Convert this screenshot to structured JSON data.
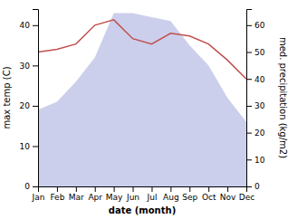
{
  "chart_data": {
    "type": "line",
    "categories": [
      "Jan",
      "Feb",
      "Mar",
      "Apr",
      "May",
      "Jun",
      "Jul",
      "Aug",
      "Sep",
      "Oct",
      "Nov",
      "Dec"
    ],
    "series": [
      {
        "type": "area",
        "color": "#c5cae9",
        "values": [
          19,
          21,
          26,
          32,
          43,
          43,
          42,
          41,
          35,
          30,
          22,
          16
        ]
      },
      {
        "type": "line",
        "color": "#c0504d",
        "axis": "y2",
        "values": [
          50,
          51,
          53,
          60,
          62,
          55,
          53,
          57,
          56,
          53,
          47,
          40
        ]
      }
    ],
    "xlabel": "date (month)",
    "ylabel": "max temp (C)",
    "y2label": "med. precipitation (kg/m2)",
    "ylim": [
      0,
      44
    ],
    "yticks": [
      0,
      10,
      20,
      30,
      40
    ],
    "y2lim": [
      0,
      66
    ],
    "y2ticks": [
      0,
      10,
      20,
      30,
      40,
      50,
      60
    ],
    "grid": false
  }
}
